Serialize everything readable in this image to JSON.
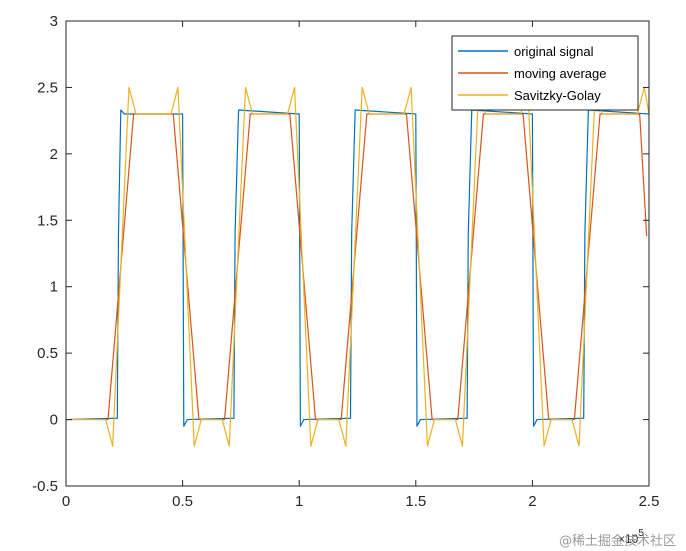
{
  "chart_data": {
    "type": "line",
    "xlim": [
      0,
      2.5
    ],
    "ylim": [
      -0.5,
      3
    ],
    "x_multiplier_label": "×10^5",
    "x_ticks": [
      {
        "value": 0,
        "label": "0"
      },
      {
        "value": 0.5,
        "label": "0.5"
      },
      {
        "value": 1,
        "label": "1"
      },
      {
        "value": 1.5,
        "label": "1.5"
      },
      {
        "value": 2,
        "label": "2"
      },
      {
        "value": 2.5,
        "label": "2.5"
      }
    ],
    "y_ticks": [
      {
        "value": -0.5,
        "label": "-0.5"
      },
      {
        "value": 0,
        "label": "0"
      },
      {
        "value": 0.5,
        "label": "0.5"
      },
      {
        "value": 1,
        "label": "1"
      },
      {
        "value": 1.5,
        "label": "1.5"
      },
      {
        "value": 2,
        "label": "2"
      },
      {
        "value": 2.5,
        "label": "2.5"
      },
      {
        "value": 3,
        "label": "3"
      }
    ],
    "grid": false,
    "box": true,
    "legend_position": "top-right",
    "series": [
      {
        "name": "original signal",
        "color": "#0072BD",
        "x": [
          0,
          0.22,
          0.225,
          0.235,
          0.25,
          0.5,
          0.505,
          0.52,
          0.72,
          0.725,
          0.74,
          1.0,
          1.005,
          1.02,
          1.22,
          1.225,
          1.24,
          1.5,
          1.505,
          1.52,
          1.72,
          1.725,
          1.74,
          2.0,
          2.005,
          2.02,
          2.22,
          2.225,
          2.24,
          2.5
        ],
        "y": [
          0,
          0.01,
          1.4,
          2.33,
          2.3,
          2.3,
          -0.05,
          0.0,
          0.01,
          1.4,
          2.33,
          2.3,
          -0.05,
          0.0,
          0.01,
          1.4,
          2.33,
          2.3,
          -0.05,
          0.0,
          0.01,
          1.4,
          2.33,
          2.3,
          -0.05,
          0.0,
          0.01,
          1.4,
          2.33,
          2.3
        ]
      },
      {
        "name": "moving average",
        "color": "#D95319",
        "x": [
          0,
          0.18,
          0.29,
          0.46,
          0.57,
          0.68,
          0.79,
          0.96,
          1.07,
          1.18,
          1.29,
          1.46,
          1.57,
          1.68,
          1.79,
          1.96,
          2.07,
          2.18,
          2.29,
          2.46,
          2.49
        ],
        "y": [
          0,
          0.0,
          2.3,
          2.3,
          0.0,
          0.0,
          2.3,
          2.3,
          0.0,
          0.0,
          2.3,
          2.3,
          0.0,
          0.0,
          2.3,
          2.3,
          0.0,
          0.0,
          2.3,
          2.3,
          1.38
        ]
      },
      {
        "name": "Savitzky-Golay",
        "color": "#EDB120",
        "x": [
          0,
          0.17,
          0.2,
          0.27,
          0.3,
          0.45,
          0.48,
          0.55,
          0.58,
          0.67,
          0.7,
          0.77,
          0.8,
          0.95,
          0.98,
          1.05,
          1.08,
          1.17,
          1.2,
          1.27,
          1.3,
          1.45,
          1.48,
          1.55,
          1.58,
          1.67,
          1.7,
          1.77,
          1.8,
          1.95,
          1.98,
          2.05,
          2.08,
          2.17,
          2.2,
          2.27,
          2.3,
          2.45,
          2.48,
          2.5
        ],
        "y": [
          0,
          0.0,
          -0.2,
          2.5,
          2.3,
          2.3,
          2.5,
          -0.2,
          0.0,
          0.0,
          -0.2,
          2.5,
          2.3,
          2.3,
          2.5,
          -0.2,
          0.0,
          0.0,
          -0.2,
          2.5,
          2.3,
          2.3,
          2.5,
          -0.2,
          0.0,
          0.0,
          -0.2,
          2.5,
          2.3,
          2.3,
          2.5,
          -0.2,
          0.0,
          0.0,
          -0.2,
          2.5,
          2.3,
          2.3,
          2.5,
          2.3
        ]
      }
    ]
  },
  "watermark": "@稀土掘金技术社区"
}
